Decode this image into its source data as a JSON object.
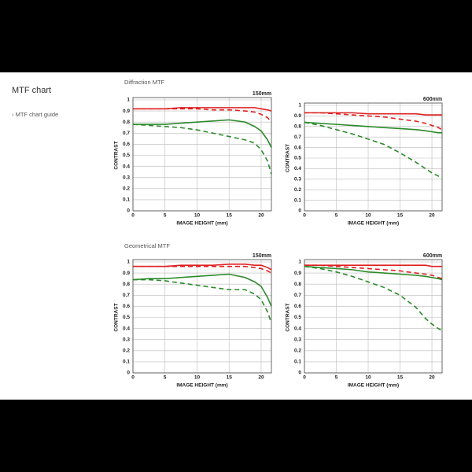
{
  "page": {
    "title": "MTF chart",
    "link": "› MTF chart guide"
  },
  "sections": [
    "Diffraction MTF",
    "Geometrical MTF"
  ],
  "chart_data": [
    {
      "type": "line",
      "title": "150mm",
      "xlabel": "IMAGE HEIGHT (mm)",
      "ylabel": "CONTRAST",
      "x": [
        0,
        2.5,
        5,
        7.5,
        10,
        12.5,
        15,
        17.5,
        19,
        20,
        21,
        21.6
      ],
      "series": [
        {
          "color": "#e02020",
          "dashed": false,
          "values": [
            0.92,
            0.92,
            0.92,
            0.93,
            0.93,
            0.93,
            0.93,
            0.93,
            0.93,
            0.92,
            0.91,
            0.9
          ]
        },
        {
          "color": "#e02020",
          "dashed": true,
          "values": [
            0.92,
            0.92,
            0.92,
            0.92,
            0.92,
            0.91,
            0.91,
            0.9,
            0.89,
            0.87,
            0.84,
            0.8
          ]
        },
        {
          "color": "#2a8a2a",
          "dashed": false,
          "values": [
            0.78,
            0.78,
            0.78,
            0.79,
            0.8,
            0.81,
            0.82,
            0.8,
            0.76,
            0.72,
            0.64,
            0.57
          ]
        },
        {
          "color": "#2a8a2a",
          "dashed": true,
          "values": [
            0.78,
            0.77,
            0.76,
            0.75,
            0.73,
            0.7,
            0.67,
            0.64,
            0.61,
            0.55,
            0.45,
            0.33
          ]
        }
      ],
      "xlim": [
        0,
        21.6
      ],
      "ylim": [
        0,
        1
      ],
      "xticks": [
        0,
        5,
        10,
        15,
        20
      ],
      "yticks": [
        0,
        0.1,
        0.2,
        0.3,
        0.4,
        0.5,
        0.6,
        0.7,
        0.8,
        0.9,
        1
      ],
      "grid": true
    },
    {
      "type": "line",
      "title": "600mm",
      "xlabel": "IMAGE HEIGHT (mm)",
      "ylabel": "CONTRAST",
      "x": [
        0,
        2.5,
        5,
        7.5,
        10,
        12.5,
        15,
        17.5,
        19,
        20,
        21,
        21.6
      ],
      "series": [
        {
          "color": "#e02020",
          "dashed": false,
          "values": [
            0.93,
            0.93,
            0.93,
            0.93,
            0.92,
            0.92,
            0.92,
            0.92,
            0.91,
            0.91,
            0.91,
            0.91
          ]
        },
        {
          "color": "#e02020",
          "dashed": true,
          "values": [
            0.93,
            0.93,
            0.92,
            0.91,
            0.9,
            0.89,
            0.87,
            0.85,
            0.83,
            0.81,
            0.79,
            0.77
          ]
        },
        {
          "color": "#2a8a2a",
          "dashed": false,
          "values": [
            0.84,
            0.83,
            0.82,
            0.81,
            0.8,
            0.79,
            0.78,
            0.77,
            0.76,
            0.75,
            0.74,
            0.74
          ]
        },
        {
          "color": "#2a8a2a",
          "dashed": true,
          "values": [
            0.84,
            0.81,
            0.77,
            0.73,
            0.68,
            0.63,
            0.55,
            0.46,
            0.4,
            0.36,
            0.33,
            0.31
          ]
        }
      ],
      "xlim": [
        0,
        21.6
      ],
      "ylim": [
        0,
        1
      ],
      "xticks": [
        0,
        5,
        10,
        15,
        20
      ],
      "yticks": [
        0,
        0.1,
        0.2,
        0.3,
        0.4,
        0.5,
        0.6,
        0.7,
        0.8,
        0.9,
        1
      ],
      "grid": true
    },
    {
      "type": "line",
      "title": "150mm",
      "xlabel": "IMAGE HEIGHT (mm)",
      "ylabel": "CONTRAST",
      "x": [
        0,
        2.5,
        5,
        7.5,
        10,
        12.5,
        15,
        17.5,
        19,
        20,
        21,
        21.6
      ],
      "series": [
        {
          "color": "#e02020",
          "dashed": false,
          "values": [
            0.96,
            0.96,
            0.96,
            0.97,
            0.97,
            0.97,
            0.98,
            0.98,
            0.97,
            0.97,
            0.95,
            0.93
          ]
        },
        {
          "color": "#e02020",
          "dashed": true,
          "values": [
            0.96,
            0.96,
            0.96,
            0.96,
            0.96,
            0.96,
            0.96,
            0.96,
            0.95,
            0.94,
            0.92,
            0.9
          ]
        },
        {
          "color": "#2a8a2a",
          "dashed": false,
          "values": [
            0.84,
            0.85,
            0.85,
            0.86,
            0.87,
            0.88,
            0.89,
            0.86,
            0.82,
            0.78,
            0.68,
            0.6
          ]
        },
        {
          "color": "#2a8a2a",
          "dashed": true,
          "values": [
            0.84,
            0.84,
            0.83,
            0.81,
            0.79,
            0.77,
            0.75,
            0.75,
            0.71,
            0.66,
            0.55,
            0.45
          ]
        }
      ],
      "xlim": [
        0,
        21.6
      ],
      "ylim": [
        0,
        1
      ],
      "xticks": [
        0,
        5,
        10,
        15,
        20
      ],
      "yticks": [
        0,
        0.1,
        0.2,
        0.3,
        0.4,
        0.5,
        0.6,
        0.7,
        0.8,
        0.9,
        1
      ],
      "grid": true
    },
    {
      "type": "line",
      "title": "600mm",
      "xlabel": "IMAGE HEIGHT (mm)",
      "ylabel": "CONTRAST",
      "x": [
        0,
        2.5,
        5,
        7.5,
        10,
        12.5,
        15,
        17.5,
        19,
        20,
        21,
        21.6
      ],
      "series": [
        {
          "color": "#e02020",
          "dashed": false,
          "values": [
            0.97,
            0.97,
            0.97,
            0.97,
            0.97,
            0.97,
            0.97,
            0.97,
            0.97,
            0.96,
            0.96,
            0.96
          ]
        },
        {
          "color": "#e02020",
          "dashed": true,
          "values": [
            0.97,
            0.97,
            0.96,
            0.95,
            0.94,
            0.93,
            0.92,
            0.9,
            0.89,
            0.88,
            0.86,
            0.85
          ]
        },
        {
          "color": "#2a8a2a",
          "dashed": false,
          "values": [
            0.96,
            0.95,
            0.94,
            0.93,
            0.91,
            0.9,
            0.89,
            0.88,
            0.87,
            0.86,
            0.85,
            0.84
          ]
        },
        {
          "color": "#2a8a2a",
          "dashed": true,
          "values": [
            0.96,
            0.94,
            0.91,
            0.87,
            0.82,
            0.77,
            0.7,
            0.59,
            0.49,
            0.44,
            0.4,
            0.38
          ]
        }
      ],
      "xlim": [
        0,
        21.6
      ],
      "ylim": [
        0,
        1
      ],
      "xticks": [
        0,
        5,
        10,
        15,
        20
      ],
      "yticks": [
        0,
        0.1,
        0.2,
        0.3,
        0.4,
        0.5,
        0.6,
        0.7,
        0.8,
        0.9,
        1
      ],
      "grid": true
    }
  ]
}
